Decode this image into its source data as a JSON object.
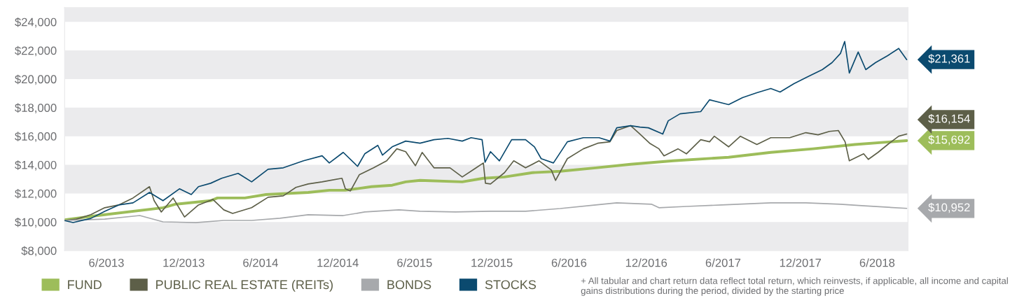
{
  "chart_data": {
    "type": "line",
    "xlim": [
      "2013-02-22",
      "2018-08-13"
    ],
    "xticks": [
      {
        "value": "2013-06-01",
        "label": "6/2013"
      },
      {
        "value": "2013-12-01",
        "label": "12/2013"
      },
      {
        "value": "2014-06-01",
        "label": "6/2014"
      },
      {
        "value": "2014-12-01",
        "label": "12/2014"
      },
      {
        "value": "2015-06-01",
        "label": "6/2015"
      },
      {
        "value": "2015-12-01",
        "label": "12/2015"
      },
      {
        "value": "2016-06-01",
        "label": "6/2016"
      },
      {
        "value": "2016-12-01",
        "label": "12/2016"
      },
      {
        "value": "2017-06-01",
        "label": "6/2017"
      },
      {
        "value": "2017-12-01",
        "label": "12/2017"
      },
      {
        "value": "2018-06-01",
        "label": "6/2018"
      }
    ],
    "ylim": [
      8000,
      25000
    ],
    "yticks": [
      {
        "value": 8000,
        "label": "$8,000"
      },
      {
        "value": 10000,
        "label": "$10,000"
      },
      {
        "value": 12000,
        "label": "$12,000"
      },
      {
        "value": 14000,
        "label": "$14,000"
      },
      {
        "value": 16000,
        "label": "$16,000"
      },
      {
        "value": 18000,
        "label": "$18,000"
      },
      {
        "value": 20000,
        "label": "$20,000"
      },
      {
        "value": 22000,
        "label": "$22,000"
      },
      {
        "value": 24000,
        "label": "$24,000"
      }
    ],
    "grid": false,
    "legend": "bottom",
    "bands": [
      {
        "axis": "y",
        "from": 8000,
        "to": 10000,
        "color": "#ebebed"
      },
      {
        "axis": "y",
        "from": 12000,
        "to": 14000,
        "color": "#ebebed"
      },
      {
        "axis": "y",
        "from": 16000,
        "to": 18000,
        "color": "#ebebed"
      },
      {
        "axis": "y",
        "from": 20000,
        "to": 22000,
        "color": "#ebebed"
      },
      {
        "axis": "y",
        "from": 24000,
        "to": 25000,
        "color": "#ebebed"
      }
    ],
    "annotations": [
      "+ All tabular and chart return data reflect total return, which reinvests, if applicable, all income and capital gains distributions during the period, divided by the starting price"
    ],
    "series": [
      {
        "name": "FUND",
        "color": "#9dbd5a",
        "x": [
          "2013-02-22",
          "2013-05-11",
          "2013-10-13",
          "2013-11-11",
          "2014-02-03",
          "2014-02-19",
          "2014-04-25",
          "2014-06-14",
          "2014-09-22",
          "2014-11-11",
          "2014-12-19",
          "2015-02-19",
          "2015-04-09",
          "2015-05-11",
          "2015-06-14",
          "2015-09-22",
          "2015-11-11",
          "2015-12-31",
          "2016-03-06",
          "2016-05-11",
          "2016-08-03",
          "2016-10-25",
          "2017-02-03",
          "2017-06-14",
          "2017-09-22",
          "2017-12-31",
          "2018-04-09",
          "2018-08-10"
        ],
        "values": [
          10150,
          10450,
          11000,
          11240,
          11490,
          11680,
          11680,
          11920,
          12070,
          12220,
          12220,
          12470,
          12570,
          12810,
          12910,
          12810,
          13060,
          13150,
          13450,
          13550,
          13790,
          14040,
          14280,
          14530,
          14870,
          15120,
          15420,
          15692
        ],
        "value_labels": [
          null,
          null,
          null,
          null,
          null,
          null,
          null,
          null,
          null,
          null,
          null,
          null,
          null,
          null,
          null,
          null,
          null,
          null,
          null,
          null,
          null,
          null,
          null,
          null,
          null,
          null,
          null,
          "$15,692"
        ]
      },
      {
        "name": "PUBLIC REAL ESTATE (REITs)",
        "color": "#5d5f48",
        "x": [
          "2013-02-22",
          "2013-03-22",
          "2013-04-25",
          "2013-05-28",
          "2013-06-30",
          "2013-08-03",
          "2013-09-11",
          "2013-09-22",
          "2013-10-09",
          "2013-11-06",
          "2013-12-03",
          "2014-01-05",
          "2014-02-08",
          "2014-03-06",
          "2014-03-27",
          "2014-05-11",
          "2014-06-19",
          "2014-07-25",
          "2014-08-24",
          "2014-09-22",
          "2014-10-25",
          "2014-12-11",
          "2014-12-19",
          "2014-12-31",
          "2015-01-21",
          "2015-02-24",
          "2015-03-27",
          "2015-04-20",
          "2015-05-11",
          "2015-06-03",
          "2015-06-19",
          "2015-07-17",
          "2015-08-24",
          "2015-09-22",
          "2015-10-25",
          "2015-11-11",
          "2015-11-16",
          "2015-11-28",
          "2015-12-31",
          "2016-01-22",
          "2016-02-19",
          "2016-03-22",
          "2016-04-20",
          "2016-04-30",
          "2016-05-28",
          "2016-07-05",
          "2016-08-08",
          "2016-09-06",
          "2016-09-22",
          "2016-10-25",
          "2016-11-16",
          "2016-12-09",
          "2016-12-31",
          "2017-01-12",
          "2017-02-14",
          "2017-03-06",
          "2017-04-09",
          "2017-04-30",
          "2017-05-11",
          "2017-06-14",
          "2017-07-12",
          "2017-08-20",
          "2017-09-22",
          "2017-11-06",
          "2017-12-14",
          "2018-01-12",
          "2018-02-08",
          "2018-03-01",
          "2018-03-17",
          "2018-03-27",
          "2018-04-30",
          "2018-05-11",
          "2018-06-03",
          "2018-06-26",
          "2018-07-22",
          "2018-08-10"
        ],
        "values": [
          10100,
          10200,
          10510,
          11000,
          11190,
          11680,
          12470,
          11490,
          10700,
          11680,
          10350,
          11190,
          11580,
          10850,
          10600,
          11000,
          11730,
          11830,
          12420,
          12660,
          12810,
          13060,
          12320,
          12170,
          13300,
          13790,
          14280,
          15120,
          14920,
          13940,
          14870,
          13790,
          13790,
          13150,
          13790,
          14130,
          12710,
          12660,
          13450,
          14280,
          13790,
          14280,
          13640,
          12910,
          14430,
          15120,
          15510,
          15610,
          16400,
          16740,
          16150,
          15510,
          15120,
          14630,
          15120,
          14770,
          15760,
          15610,
          16000,
          15260,
          16000,
          15420,
          15900,
          15900,
          16250,
          16100,
          16340,
          16400,
          15610,
          14280,
          14770,
          14380,
          14870,
          15420,
          16000,
          16154
        ],
        "value_labels": [
          null,
          null,
          null,
          null,
          null,
          null,
          null,
          null,
          null,
          null,
          null,
          null,
          null,
          null,
          null,
          null,
          null,
          null,
          null,
          null,
          null,
          null,
          null,
          null,
          null,
          null,
          null,
          null,
          null,
          null,
          null,
          null,
          null,
          null,
          null,
          null,
          null,
          null,
          null,
          null,
          null,
          null,
          null,
          null,
          null,
          null,
          null,
          null,
          null,
          null,
          null,
          null,
          null,
          null,
          null,
          null,
          null,
          null,
          null,
          null,
          null,
          null,
          null,
          null,
          null,
          null,
          null,
          null,
          null,
          null,
          null,
          null,
          null,
          null,
          null,
          "$16,154"
        ]
      },
      {
        "name": "BONDS",
        "color": "#a7a9ac",
        "x": [
          "2013-02-22",
          "2013-05-28",
          "2013-08-19",
          "2013-10-13",
          "2013-12-30",
          "2014-03-06",
          "2014-05-11",
          "2014-07-17",
          "2014-09-22",
          "2014-12-14",
          "2015-02-03",
          "2015-04-25",
          "2015-06-14",
          "2015-09-06",
          "2015-11-28",
          "2016-02-19",
          "2016-05-11",
          "2016-08-03",
          "2016-09-22",
          "2016-12-14",
          "2016-12-31",
          "2017-03-06",
          "2017-05-28",
          "2017-09-22",
          "2017-12-14",
          "2018-03-06",
          "2018-04-25",
          "2018-08-10"
        ],
        "values": [
          10100,
          10200,
          10450,
          10010,
          9960,
          10110,
          10110,
          10260,
          10510,
          10450,
          10700,
          10850,
          10750,
          10700,
          10750,
          10750,
          10940,
          11190,
          11340,
          11240,
          11000,
          11090,
          11190,
          11340,
          11340,
          11240,
          11140,
          10952
        ],
        "value_labels": [
          null,
          null,
          null,
          null,
          null,
          null,
          null,
          null,
          null,
          null,
          null,
          null,
          null,
          null,
          null,
          null,
          null,
          null,
          null,
          null,
          null,
          null,
          null,
          null,
          null,
          null,
          null,
          "$10,952"
        ]
      },
      {
        "name": "STOCKS",
        "color": "#0b4a6f",
        "x": [
          "2013-02-22",
          "2013-03-14",
          "2013-04-25",
          "2013-05-28",
          "2013-06-30",
          "2013-08-03",
          "2013-09-11",
          "2013-10-13",
          "2013-11-21",
          "2013-12-19",
          "2014-01-05",
          "2014-02-03",
          "2014-03-01",
          "2014-04-09",
          "2014-05-11",
          "2014-06-19",
          "2014-07-25",
          "2014-09-11",
          "2014-10-25",
          "2014-11-11",
          "2014-12-14",
          "2015-01-17",
          "2015-02-03",
          "2015-03-06",
          "2015-03-17",
          "2015-04-09",
          "2015-05-11",
          "2015-06-14",
          "2015-07-17",
          "2015-08-19",
          "2015-09-22",
          "2015-10-13",
          "2015-11-08",
          "2015-11-15",
          "2015-11-28",
          "2015-12-19",
          "2016-01-17",
          "2016-02-19",
          "2016-03-11",
          "2016-03-27",
          "2016-04-25",
          "2016-05-28",
          "2016-07-05",
          "2016-08-11",
          "2016-09-06",
          "2016-09-22",
          "2016-10-25",
          "2016-11-16",
          "2016-12-06",
          "2017-01-09",
          "2017-01-22",
          "2017-02-19",
          "2017-04-09",
          "2017-04-30",
          "2017-06-14",
          "2017-07-17",
          "2017-08-20",
          "2017-09-22",
          "2017-10-14",
          "2017-11-16",
          "2017-12-19",
          "2018-01-22",
          "2018-02-14",
          "2018-03-06",
          "2018-03-16",
          "2018-03-27",
          "2018-04-17",
          "2018-05-05",
          "2018-05-28",
          "2018-06-26",
          "2018-07-22",
          "2018-08-10"
        ],
        "values": [
          10100,
          9960,
          10250,
          10750,
          11190,
          11340,
          12070,
          11490,
          12320,
          11920,
          12470,
          12710,
          13060,
          13400,
          12810,
          13690,
          13790,
          14280,
          14630,
          14130,
          14870,
          13890,
          14770,
          15360,
          14680,
          15260,
          15660,
          15510,
          15760,
          15850,
          15660,
          15900,
          15760,
          14180,
          14920,
          14280,
          15760,
          15760,
          15260,
          14430,
          14130,
          15610,
          15900,
          15900,
          15660,
          16590,
          16740,
          16640,
          16590,
          16150,
          17080,
          17570,
          17720,
          18550,
          18210,
          18700,
          19040,
          19340,
          19090,
          19680,
          20170,
          20660,
          21150,
          21790,
          22630,
          20420,
          21890,
          20660,
          21150,
          21640,
          22140,
          21361
        ],
        "value_labels": [
          null,
          null,
          null,
          null,
          null,
          null,
          null,
          null,
          null,
          null,
          null,
          null,
          null,
          null,
          null,
          null,
          null,
          null,
          null,
          null,
          null,
          null,
          null,
          null,
          null,
          null,
          null,
          null,
          null,
          null,
          null,
          null,
          null,
          null,
          null,
          null,
          null,
          null,
          null,
          null,
          null,
          null,
          null,
          null,
          null,
          null,
          null,
          null,
          null,
          null,
          null,
          null,
          null,
          null,
          null,
          null,
          null,
          null,
          null,
          null,
          null,
          null,
          null,
          null,
          null,
          null,
          null,
          null,
          null,
          null,
          null,
          "$21,361"
        ]
      }
    ]
  }
}
